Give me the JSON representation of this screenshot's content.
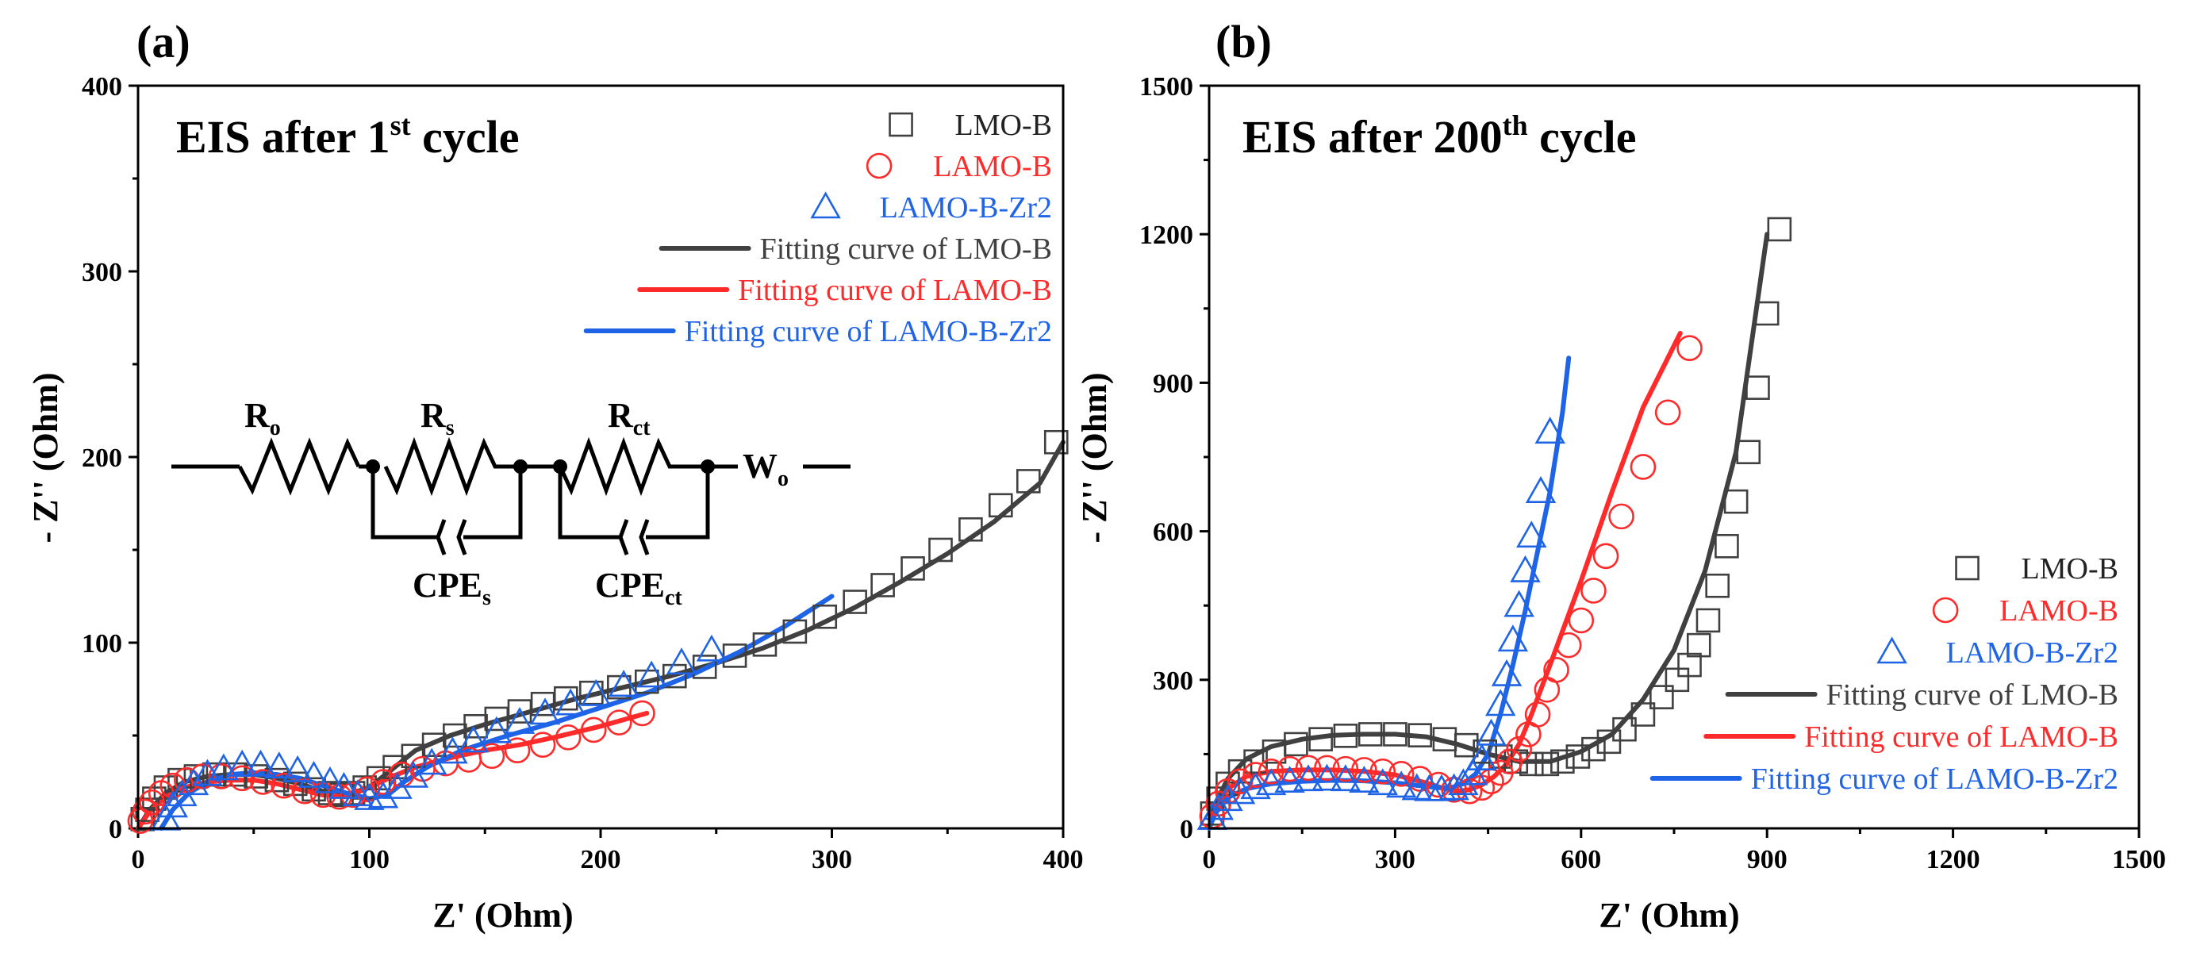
{
  "colors": {
    "lmo": "#404040",
    "lamo": "#ff2a2a",
    "zr2": "#1f64e6",
    "axis": "#000000"
  },
  "chart_data": [
    {
      "type": "scatter",
      "panel_label": "(a)",
      "title": {
        "prefix": "EIS after 1",
        "sup": "st",
        "suffix": " cycle"
      },
      "xlabel": "Z' (Ohm)",
      "ylabel": "- Z'' (Ohm)",
      "xlim": [
        0,
        400
      ],
      "ylim": [
        0,
        400
      ],
      "xticks": [
        0,
        100,
        200,
        300,
        400
      ],
      "yticks": [
        0,
        100,
        200,
        300,
        400
      ],
      "xtick_labels": [
        "0",
        "100",
        "200",
        "300",
        "400"
      ],
      "ytick_labels": [
        "0",
        "100",
        "200",
        "300",
        "400"
      ],
      "legend_position": "top-right",
      "legend": [
        {
          "label": "LMO-B",
          "kind": "square",
          "color_key": "lmo"
        },
        {
          "label": "LAMO-B",
          "kind": "circle",
          "color_key": "lamo"
        },
        {
          "label": "LAMO-B-Zr2",
          "kind": "triangle",
          "color_key": "zr2"
        },
        {
          "label": "Fitting curve of LMO-B",
          "kind": "line",
          "color_key": "lmo"
        },
        {
          "label": "Fitting curve of LAMO-B",
          "kind": "line",
          "color_key": "lamo"
        },
        {
          "label": "Fitting curve of LAMO-B-Zr2",
          "kind": "line",
          "color_key": "zr2"
        }
      ],
      "circuit": {
        "r_o": {
          "main": "R",
          "sub": "o"
        },
        "r_s": {
          "main": "R",
          "sub": "s"
        },
        "r_ct": {
          "main": "R",
          "sub": "ct"
        },
        "w_o": {
          "main": "W",
          "sub": "o"
        },
        "cpe_s": {
          "main": "CPE",
          "sub": "s"
        },
        "cpe_ct": {
          "main": "CPE",
          "sub": "ct"
        }
      },
      "series": [
        {
          "name": "LMO-B",
          "marker": "square",
          "color_key": "lmo",
          "x": [
            2,
            4,
            7,
            12,
            18,
            25,
            33,
            42,
            51,
            60,
            68,
            76,
            83,
            88,
            93,
            98,
            104,
            111,
            119,
            128,
            137,
            146,
            155,
            165,
            175,
            185,
            196,
            208,
            220,
            232,
            245,
            258,
            271,
            284,
            297,
            310,
            322,
            335,
            347,
            360,
            373,
            385,
            397
          ],
          "y": [
            5,
            10,
            16,
            22,
            26,
            28,
            29,
            29,
            28,
            26,
            24,
            21,
            19,
            18,
            19,
            22,
            27,
            33,
            39,
            45,
            50,
            55,
            59,
            63,
            67,
            70,
            73,
            76,
            79,
            82,
            87,
            93,
            99,
            106,
            114,
            122,
            131,
            140,
            150,
            161,
            174,
            187,
            208
          ]
        },
        {
          "name": "LAMO-B",
          "marker": "circle",
          "color_key": "lamo",
          "x": [
            1,
            3,
            6,
            10,
            15,
            21,
            28,
            36,
            45,
            54,
            63,
            72,
            80,
            87,
            93,
            99,
            106,
            114,
            123,
            133,
            143,
            153,
            164,
            175,
            186,
            197,
            208,
            218
          ],
          "y": [
            4,
            9,
            14,
            19,
            23,
            26,
            28,
            28,
            27,
            25,
            23,
            20,
            18,
            17,
            18,
            21,
            25,
            29,
            32,
            35,
            37,
            39,
            42,
            45,
            49,
            53,
            57,
            62
          ]
        },
        {
          "name": "LAMO-B-Zr2",
          "marker": "triangle",
          "color_key": "zr2",
          "x": [
            12,
            15,
            19,
            24,
            30,
            37,
            45,
            53,
            61,
            69,
            76,
            83,
            89,
            95,
            100,
            106,
            112,
            119,
            127,
            136,
            145,
            155,
            165,
            176,
            187,
            198,
            210,
            222,
            235,
            248
          ],
          "y": [
            5,
            12,
            18,
            24,
            29,
            32,
            34,
            34,
            33,
            31,
            28,
            25,
            22,
            18,
            16,
            17,
            22,
            28,
            35,
            41,
            47,
            52,
            57,
            62,
            67,
            72,
            77,
            82,
            89,
            96
          ]
        }
      ],
      "fits": [
        {
          "name": "Fitting curve of LMO-B",
          "color_key": "lmo",
          "x": [
            0,
            5,
            12,
            20,
            30,
            40,
            50,
            60,
            70,
            80,
            90,
            100,
            110,
            120,
            135,
            150,
            170,
            190,
            210,
            230,
            250,
            270,
            290,
            310,
            330,
            350,
            370,
            390,
            400
          ],
          "y": [
            0,
            10,
            19,
            25,
            28,
            29,
            29,
            27,
            24,
            20,
            18,
            22,
            32,
            42,
            50,
            56,
            63,
            70,
            76,
            82,
            89,
            97,
            107,
            119,
            133,
            148,
            165,
            186,
            208
          ]
        },
        {
          "name": "Fitting curve of LAMO-B",
          "color_key": "lamo",
          "x": [
            0,
            5,
            12,
            20,
            30,
            40,
            50,
            60,
            70,
            80,
            90,
            100,
            110,
            120,
            135,
            150,
            165,
            180,
            200,
            220
          ],
          "y": [
            0,
            9,
            17,
            22,
            25,
            26,
            26,
            24,
            21,
            18,
            17,
            22,
            28,
            33,
            38,
            42,
            45,
            49,
            55,
            62
          ]
        },
        {
          "name": "Fitting curve of LAMO-B-Zr2",
          "color_key": "zr2",
          "x": [
            10,
            15,
            22,
            30,
            40,
            50,
            60,
            70,
            80,
            90,
            100,
            108,
            115,
            125,
            140,
            160,
            180,
            200,
            220,
            240,
            260,
            280,
            300
          ],
          "y": [
            0,
            10,
            19,
            25,
            29,
            30,
            29,
            27,
            23,
            19,
            16,
            18,
            25,
            33,
            42,
            50,
            57,
            65,
            73,
            83,
            95,
            109,
            125
          ]
        }
      ]
    },
    {
      "type": "scatter",
      "panel_label": "(b)",
      "title": {
        "prefix": "EIS after 200",
        "sup": "th",
        "suffix": " cycle"
      },
      "xlabel": "Z' (Ohm)",
      "ylabel": "- Z'' (Ohm)",
      "xlim": [
        0,
        1500
      ],
      "ylim": [
        0,
        1500
      ],
      "xticks": [
        0,
        300,
        600,
        900,
        1200,
        1500
      ],
      "yticks": [
        0,
        300,
        600,
        900,
        1200,
        1500
      ],
      "xtick_labels": [
        "0",
        "300",
        "600",
        "900",
        "1200",
        "1500"
      ],
      "ytick_labels": [
        "0",
        "300",
        "600",
        "900",
        "1200",
        "1500"
      ],
      "legend_position": "bottom-right",
      "legend": [
        {
          "label": "LMO-B",
          "kind": "square",
          "color_key": "lmo"
        },
        {
          "label": "LAMO-B",
          "kind": "circle",
          "color_key": "lamo"
        },
        {
          "label": "LAMO-B-Zr2",
          "kind": "triangle",
          "color_key": "zr2"
        },
        {
          "label": "Fitting curve of LMO-B",
          "kind": "line",
          "color_key": "lmo"
        },
        {
          "label": "Fitting curve of LAMO-B",
          "kind": "line",
          "color_key": "lamo"
        },
        {
          "label": "Fitting curve of LAMO-B-Zr2",
          "kind": "line",
          "color_key": "zr2"
        }
      ],
      "series": [
        {
          "name": "LMO-B",
          "marker": "square",
          "color_key": "lmo",
          "x": [
            5,
            15,
            30,
            50,
            75,
            105,
            140,
            180,
            220,
            260,
            300,
            340,
            380,
            415,
            445,
            470,
            495,
            520,
            545,
            570,
            595,
            620,
            645,
            670,
            700,
            730,
            755,
            775,
            790,
            805,
            820,
            835,
            850,
            870,
            885,
            900,
            920
          ],
          "y": [
            30,
            60,
            90,
            115,
            135,
            155,
            170,
            180,
            187,
            190,
            190,
            188,
            180,
            168,
            155,
            145,
            135,
            130,
            130,
            135,
            145,
            160,
            175,
            200,
            230,
            265,
            300,
            330,
            370,
            420,
            490,
            570,
            660,
            760,
            890,
            1040,
            1210
          ]
        },
        {
          "name": "LAMO-B",
          "marker": "circle",
          "color_key": "lamo",
          "x": [
            5,
            15,
            30,
            50,
            75,
            100,
            130,
            160,
            190,
            220,
            250,
            280,
            310,
            340,
            370,
            395,
            420,
            440,
            455,
            470,
            485,
            500,
            515,
            530,
            545,
            560,
            580,
            600,
            620,
            640,
            665,
            700,
            740,
            775
          ],
          "y": [
            25,
            50,
            75,
            95,
            108,
            115,
            120,
            122,
            122,
            120,
            118,
            115,
            110,
            100,
            88,
            78,
            75,
            82,
            95,
            112,
            135,
            160,
            190,
            230,
            280,
            320,
            370,
            420,
            480,
            550,
            630,
            730,
            840,
            970
          ]
        },
        {
          "name": "LAMO-B-Zr2",
          "marker": "triangle",
          "color_key": "zr2",
          "x": [
            5,
            15,
            30,
            50,
            75,
            100,
            130,
            160,
            190,
            220,
            250,
            280,
            310,
            335,
            355,
            375,
            395,
            410,
            425,
            440,
            455,
            470,
            480,
            490,
            500,
            510,
            520,
            535,
            550
          ],
          "y": [
            20,
            40,
            58,
            72,
            82,
            90,
            95,
            98,
            99,
            98,
            95,
            90,
            85,
            80,
            78,
            78,
            80,
            90,
            110,
            140,
            190,
            250,
            310,
            380,
            450,
            520,
            590,
            680,
            800
          ]
        }
      ],
      "fits": [
        {
          "name": "Fitting curve of LMO-B",
          "color_key": "lmo",
          "x": [
            0,
            10,
            30,
            60,
            100,
            150,
            200,
            250,
            300,
            350,
            400,
            450,
            500,
            550,
            600,
            650,
            700,
            750,
            800,
            850,
            900
          ],
          "y": [
            0,
            50,
            100,
            140,
            165,
            180,
            188,
            190,
            190,
            185,
            170,
            150,
            135,
            135,
            155,
            190,
            260,
            360,
            520,
            760,
            1200
          ]
        },
        {
          "name": "Fitting curve of LAMO-B",
          "color_key": "lamo",
          "x": [
            0,
            10,
            30,
            60,
            100,
            150,
            200,
            250,
            300,
            350,
            380,
            400,
            420,
            440,
            460,
            480,
            500,
            520,
            550,
            600,
            650,
            700,
            760
          ],
          "y": [
            0,
            40,
            80,
            105,
            115,
            118,
            118,
            115,
            108,
            92,
            80,
            75,
            78,
            88,
            105,
            130,
            170,
            230,
            330,
            500,
            680,
            850,
            1000
          ]
        },
        {
          "name": "Fitting curve of LAMO-B-Zr2",
          "color_key": "zr2",
          "x": [
            0,
            10,
            30,
            60,
            100,
            150,
            200,
            250,
            300,
            340,
            370,
            390,
            410,
            430,
            450,
            470,
            490,
            510,
            530,
            550,
            570,
            580
          ],
          "y": [
            0,
            30,
            62,
            80,
            90,
            95,
            97,
            96,
            92,
            86,
            82,
            82,
            90,
            110,
            150,
            230,
            330,
            440,
            560,
            680,
            840,
            950
          ]
        }
      ]
    }
  ]
}
